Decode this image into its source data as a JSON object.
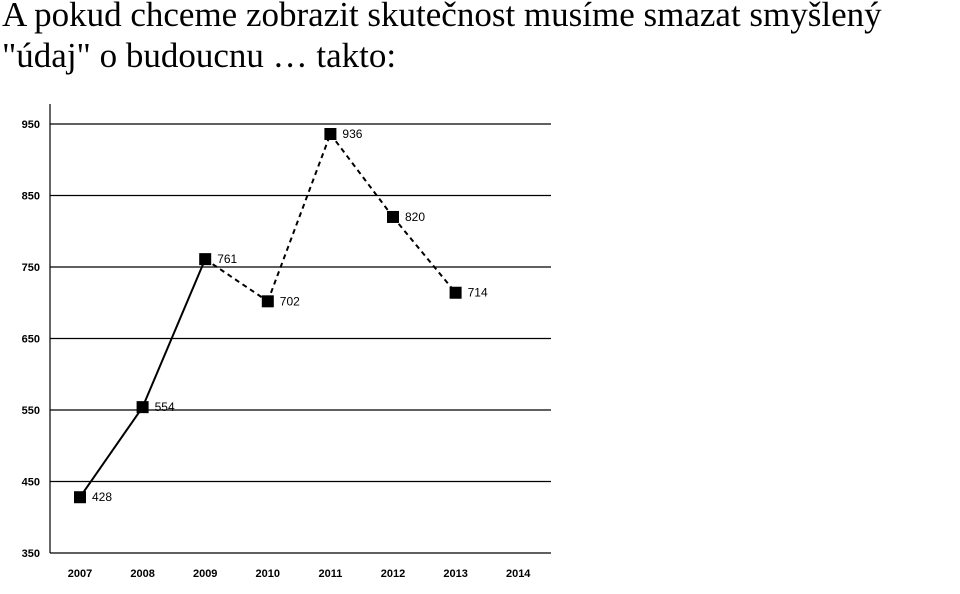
{
  "heading": {
    "line1": "A pokud chceme zobrazit skutečnost musíme smazat smyšlený",
    "line2": "\"údaj\" o budoucnu … takto:"
  },
  "chart_data": {
    "type": "line",
    "title": "",
    "xlabel": "",
    "ylabel": "",
    "categories": [
      "2007",
      "2008",
      "2009",
      "2010",
      "2011",
      "2012",
      "2013",
      "2014"
    ],
    "x": [
      2007,
      2008,
      2009,
      2010,
      2011,
      2012,
      2013
    ],
    "series": [
      {
        "values": [
          428,
          554,
          761,
          702,
          936,
          820,
          714
        ],
        "data_labels": [
          "428",
          "554",
          "761",
          "702",
          "936",
          "820",
          "714"
        ],
        "solid_segments_until": 2009,
        "line_style_after": "dashed"
      }
    ],
    "ylim": [
      350,
      950
    ],
    "yticks": [
      350,
      450,
      550,
      650,
      750,
      850,
      950
    ],
    "ytick_labels": [
      "350",
      "450",
      "550",
      "650",
      "750",
      "850",
      "950"
    ],
    "grid": true,
    "legend": "none",
    "colors": {
      "line": "#000000",
      "marker": "#000000",
      "grid": "#000000"
    }
  }
}
